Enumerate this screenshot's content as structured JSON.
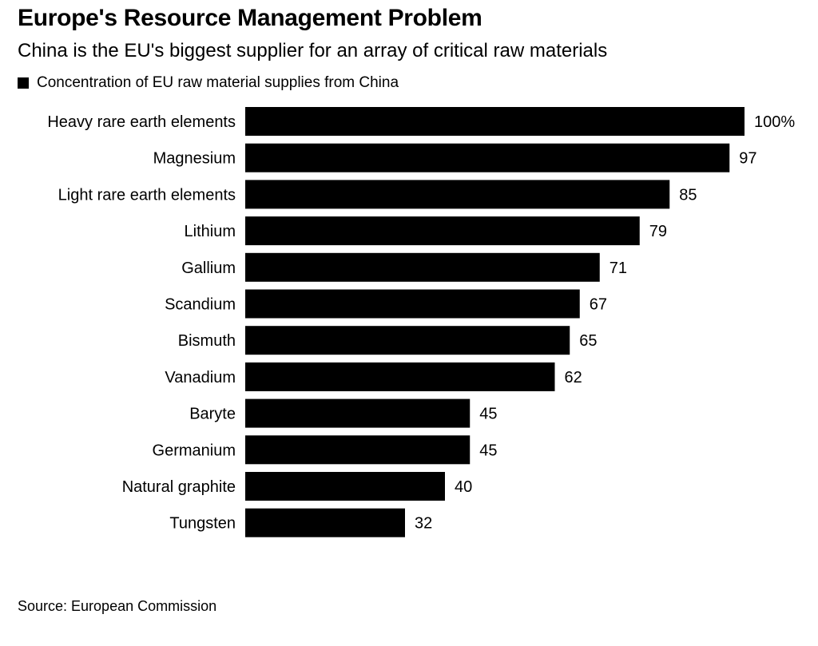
{
  "title": "Europe's Resource Management Problem",
  "subtitle": "China is the EU's biggest supplier for an array of critical raw materials",
  "legend": {
    "label": "Concentration of EU raw material supplies from China",
    "color": "#000000"
  },
  "source": "Source: European Commission",
  "chart_data": {
    "type": "bar",
    "orientation": "horizontal",
    "title": "Europe's Resource Management Problem",
    "subtitle": "China is the EU's biggest supplier for an array of critical raw materials",
    "xlabel": "",
    "ylabel": "",
    "xlim": [
      0,
      100
    ],
    "grid": false,
    "legend_position": "top-left",
    "series": [
      {
        "name": "Concentration of EU raw material supplies from China",
        "color": "#000000",
        "values": [
          100,
          97,
          85,
          79,
          71,
          67,
          65,
          62,
          45,
          45,
          40,
          32
        ]
      }
    ],
    "categories": [
      "Heavy rare earth elements",
      "Magnesium",
      "Light rare earth elements",
      "Lithium",
      "Gallium",
      "Scandium",
      "Bismuth",
      "Vanadium",
      "Baryte",
      "Germanium",
      "Natural graphite",
      "Tungsten"
    ],
    "values": [
      100,
      97,
      85,
      79,
      71,
      67,
      65,
      62,
      45,
      45,
      40,
      32
    ],
    "data_labels": [
      "100%",
      "97",
      "85",
      "79",
      "71",
      "67",
      "65",
      "62",
      "45",
      "45",
      "40",
      "32"
    ]
  }
}
